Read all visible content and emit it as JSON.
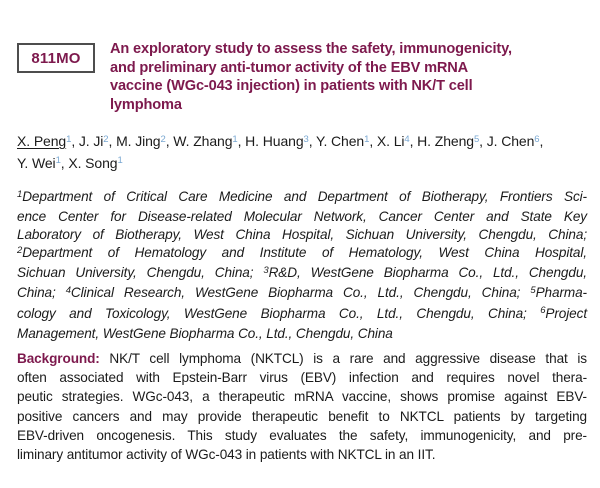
{
  "theme": {
    "accent": "#7d194d",
    "sup_blue": "#79a7d1",
    "text": "#1b1b1b",
    "box_border": "#4d4d4d",
    "page_background": "#ffffff"
  },
  "abstract": {
    "code": "811MO",
    "title_lines": [
      "An exploratory study to assess the safety, immunogenicity,",
      "and preliminary anti-tumor activity of the EBV mRNA",
      "vaccine (WGc-043 injection) in patients with NK/T cell",
      "lymphoma"
    ],
    "authors": {
      "justify": false,
      "lines": [
        [
          {
            "c": "u",
            "t": "X. Peng"
          },
          {
            "c": "sb",
            "t": "1"
          },
          {
            "t": ", J. Ji"
          },
          {
            "c": "sb",
            "t": "2"
          },
          {
            "t": ", M. Jing"
          },
          {
            "c": "sb",
            "t": "2"
          },
          {
            "t": ", W. Zhang"
          },
          {
            "c": "sb",
            "t": "1"
          },
          {
            "t": ", H. Huang"
          },
          {
            "c": "sb",
            "t": "3"
          },
          {
            "t": ", Y. Chen"
          },
          {
            "c": "sb",
            "t": "1"
          },
          {
            "t": ", X. Li"
          },
          {
            "c": "sb",
            "t": "4"
          },
          {
            "t": ", H. Zheng"
          },
          {
            "c": "sb",
            "t": "5"
          },
          {
            "t": ", J. Chen"
          },
          {
            "c": "sb",
            "t": "6"
          },
          {
            "t": ","
          }
        ],
        [
          {
            "t": "Y. Wei"
          },
          {
            "c": "sb",
            "t": "1"
          },
          {
            "t": ", X. Song"
          },
          {
            "c": "sb",
            "t": "1"
          }
        ]
      ]
    },
    "affiliations": {
      "justify": true,
      "lines": [
        [
          {
            "c": "s",
            "t": "1"
          },
          {
            "t": "Department of Critical Care Medicine and Department of Biotherapy, Frontiers Sci-"
          }
        ],
        [
          {
            "t": "ence Center for Disease-related Molecular Network, Cancer Center and State Key"
          }
        ],
        [
          {
            "t": "Laboratory of Biotherapy, West China Hospital, Sichuan University, Chengdu, China;"
          }
        ],
        [
          {
            "c": "s",
            "t": "2"
          },
          {
            "t": "Department of Hematology and Institute of Hematology, West China Hospital,"
          }
        ],
        [
          {
            "t": "Sichuan University, Chengdu, China; "
          },
          {
            "c": "s",
            "t": "3"
          },
          {
            "t": "R&D, WestGene Biopharma Co., Ltd., Chengdu,"
          }
        ],
        [
          {
            "t": "China; "
          },
          {
            "c": "s",
            "t": "4"
          },
          {
            "t": "Clinical Research, WestGene Biopharma Co., Ltd., Chengdu, China; "
          },
          {
            "c": "s",
            "t": "5"
          },
          {
            "t": "Pharma-"
          }
        ],
        [
          {
            "t": "cology and Toxicology, WestGene Biopharma Co., Ltd., Chengdu, China; "
          },
          {
            "c": "s",
            "t": "6"
          },
          {
            "t": "Project"
          }
        ],
        [
          {
            "t": "Management, WestGene Biopharma Co., Ltd., Chengdu, China"
          }
        ]
      ]
    },
    "background": {
      "justify": true,
      "lines": [
        [
          {
            "c": "bm",
            "t": "Background:"
          },
          {
            "t": " NK/T cell lymphoma (NKTCL) is a rare and aggressive disease that is"
          }
        ],
        [
          {
            "t": "often associated with Epstein-Barr virus (EBV) infection and requires novel thera-"
          }
        ],
        [
          {
            "t": "peutic strategies. WGc-043, a therapeutic mRNA vaccine, shows promise against EBV-"
          }
        ],
        [
          {
            "t": "positive cancers and may provide therapeutic benefit to NKTCL patients by targeting"
          }
        ],
        [
          {
            "t": "EBV-driven oncogenesis. This study evaluates the safety, immunogenicity, and pre-"
          }
        ],
        [
          {
            "t": "liminary antitumor activity of WGc-043 in patients with NKTCL in an IIT."
          }
        ]
      ]
    }
  }
}
